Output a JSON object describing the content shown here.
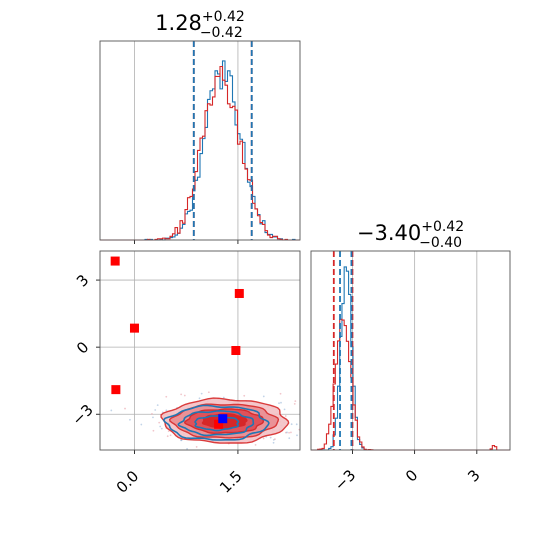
{
  "chart_data": {
    "type": "corner",
    "colors": {
      "blue": "#1f77b4",
      "red": "#d62728",
      "marker_red": "#ff0000",
      "marker_blue": "#0000ff",
      "grid": "#b0b0b0"
    },
    "panels": [
      {
        "kind": "histogram",
        "title_main": "1.28",
        "title_sup": "+0.42",
        "title_sub": "−0.42",
        "xlim": [
          -0.5,
          2.4
        ],
        "quantile_lines": {
          "red": [
            0.86,
            1.7
          ],
          "blue": [
            0.86,
            1.7
          ]
        },
        "series": [
          {
            "name": "",
            "color": "blue",
            "mean": 1.28,
            "sd": 0.26
          },
          {
            "name": "",
            "color": "red",
            "mean": 1.26,
            "sd": 0.27
          }
        ]
      },
      {
        "kind": "histogram",
        "title_main": "−3.40",
        "title_sup": "+0.42",
        "title_sub": "−0.40",
        "xlim": [
          -5.0,
          4.6
        ],
        "xticks": [
          -3,
          0,
          3
        ],
        "xtick_labels": [
          "−3",
          "0",
          "3"
        ],
        "quantile_lines": {
          "red": [
            -3.9,
            -3.0
          ],
          "blue": [
            -3.6,
            -3.05
          ]
        },
        "series": [
          {
            "name": "",
            "color": "blue",
            "mean": -3.3,
            "sd": 0.25
          },
          {
            "name": "",
            "color": "red",
            "mean": -3.45,
            "sd": 0.35
          }
        ]
      },
      {
        "kind": "contour",
        "xlim": [
          -0.5,
          2.4
        ],
        "ylim": [
          -4.6,
          4.3
        ],
        "xticks": [
          0.0,
          1.5
        ],
        "xtick_labels": [
          "0.0",
          "1.5"
        ],
        "yticks": [
          -3,
          0,
          3
        ],
        "ytick_labels": [
          "−3",
          "0",
          "3"
        ],
        "red_markers": [
          {
            "x": -0.28,
            "y": 3.85
          },
          {
            "x": 0.0,
            "y": 0.85
          },
          {
            "x": -0.27,
            "y": -1.9
          },
          {
            "x": 1.52,
            "y": 2.4
          },
          {
            "x": 1.47,
            "y": -0.15
          },
          {
            "x": 1.22,
            "y": -3.45
          }
        ],
        "blue_marker": {
          "x": 1.28,
          "y": -3.2
        },
        "center": {
          "x": 1.28,
          "y": -3.35
        }
      }
    ]
  }
}
